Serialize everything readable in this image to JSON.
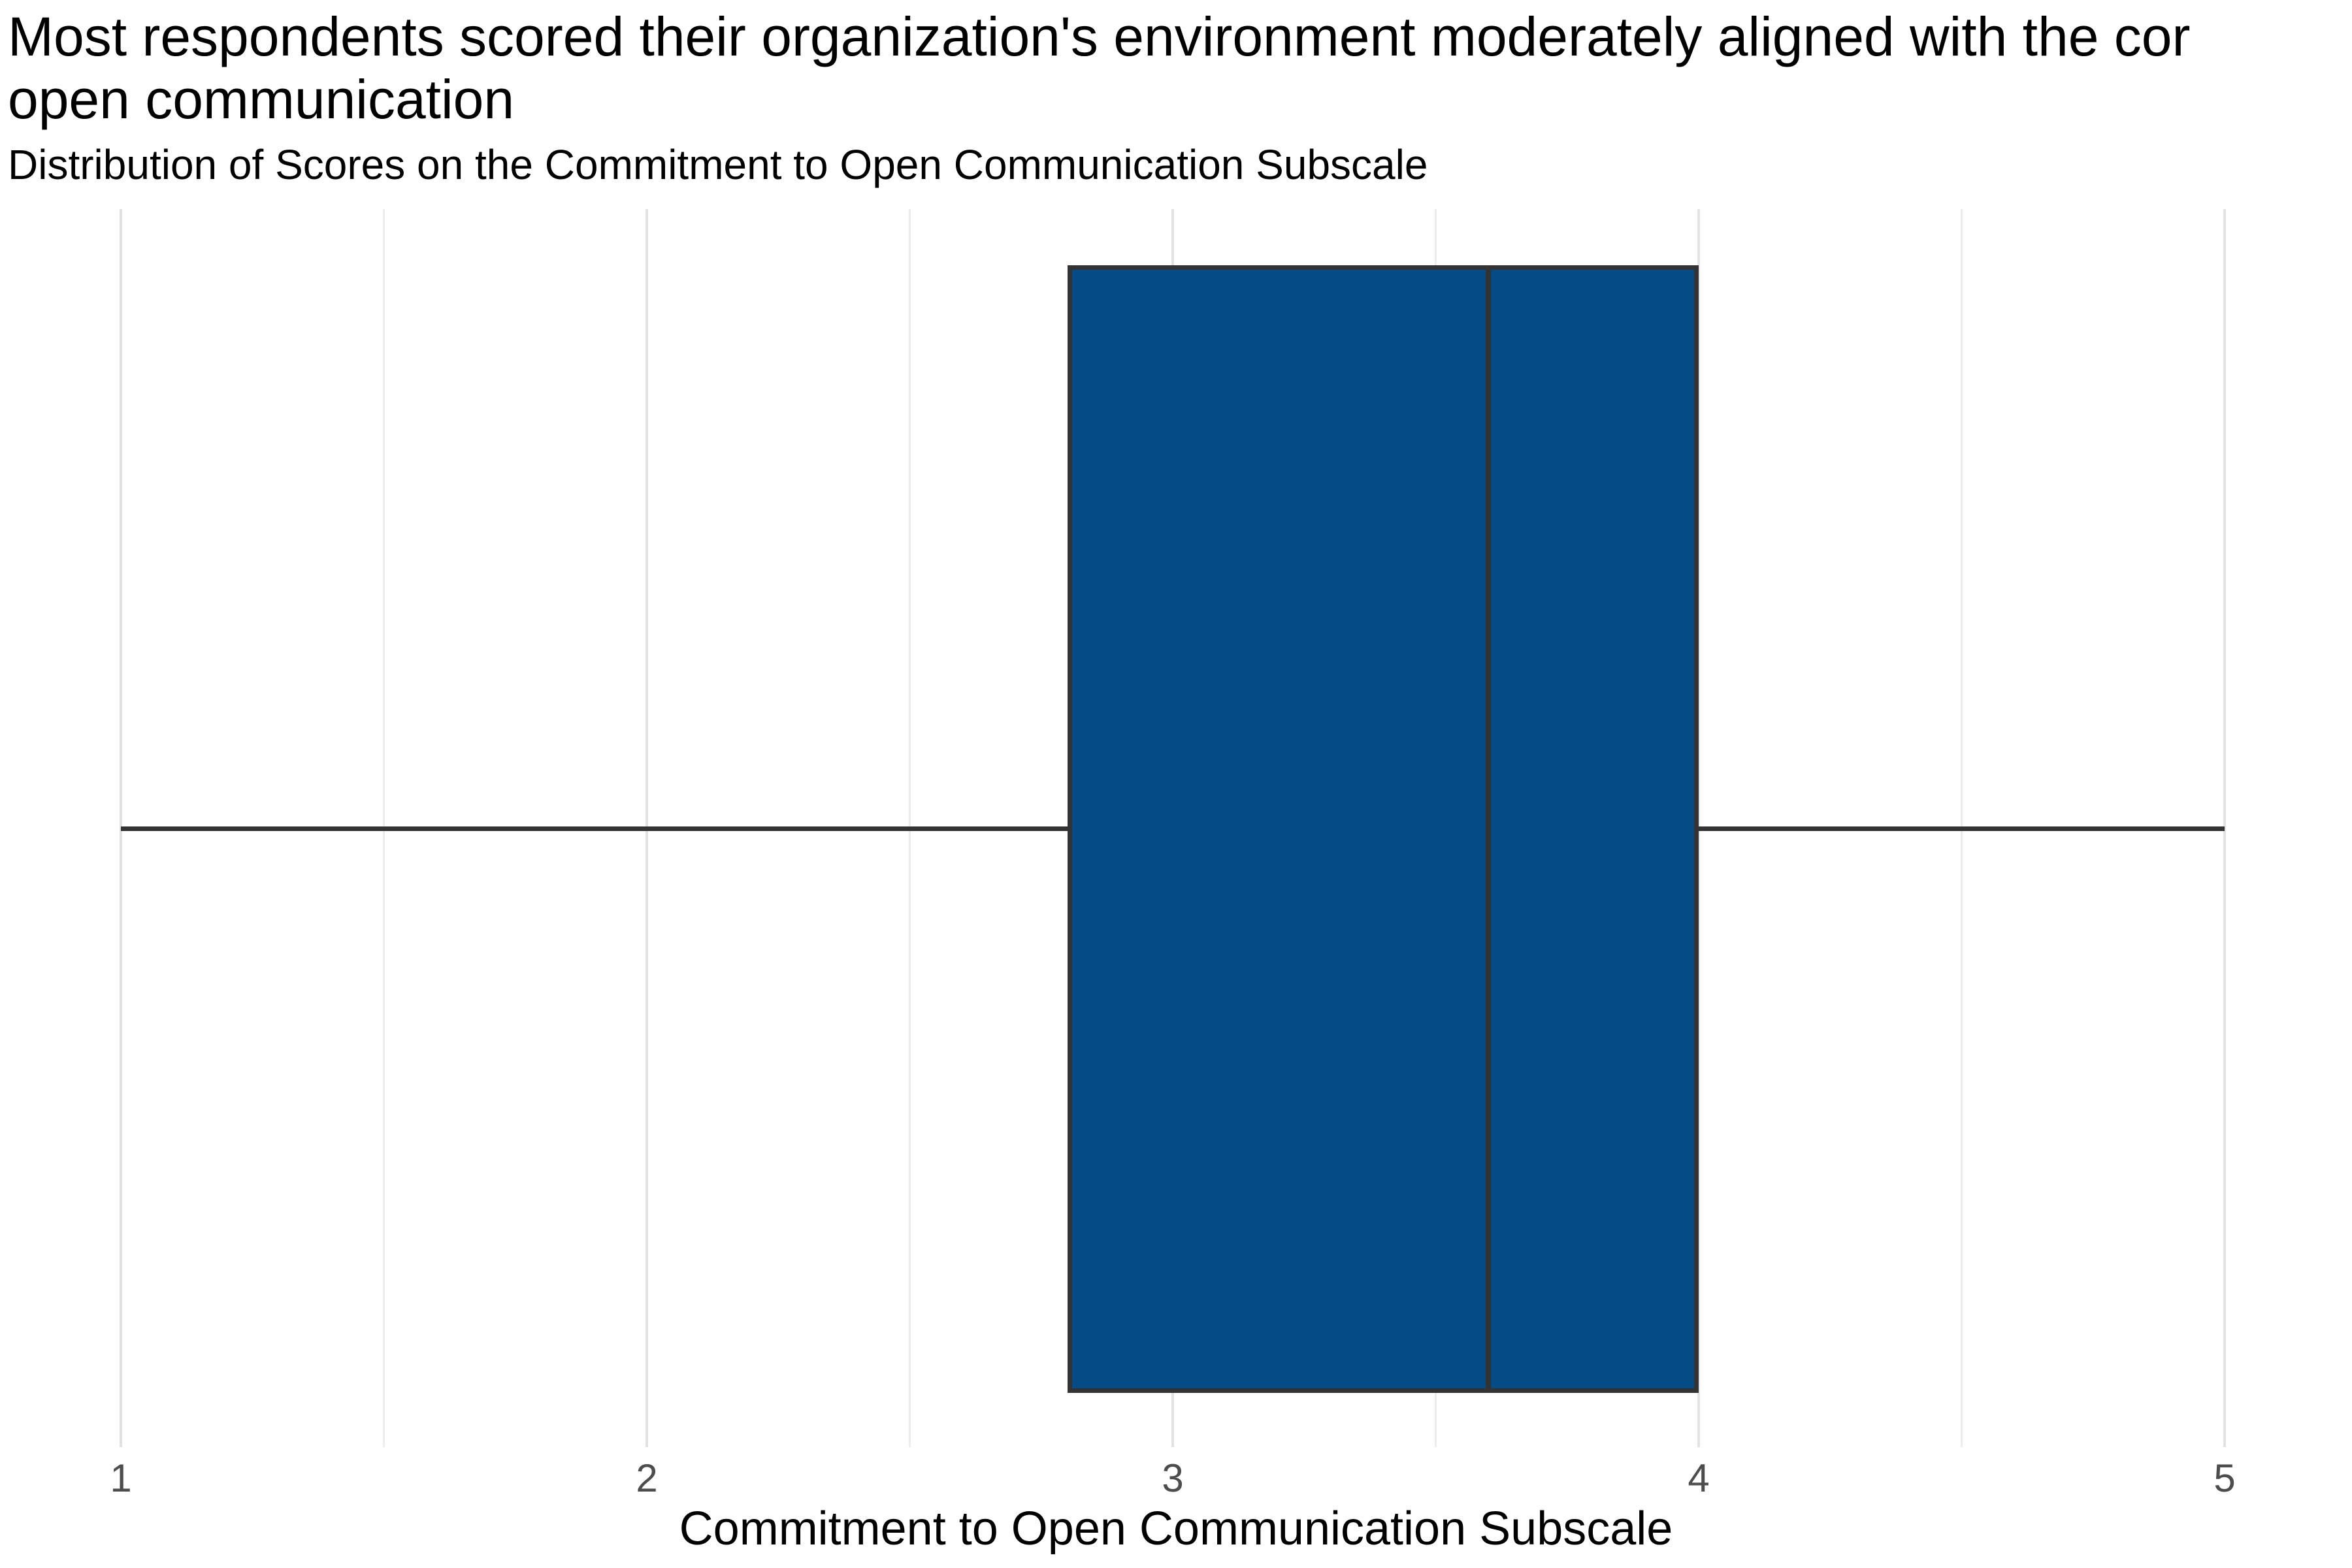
{
  "title": {
    "line1": "Most respondents scored their organization's environment moderately aligned with the cor",
    "line2": "open communication"
  },
  "subtitle": "Distribution of Scores on the Commitment to Open Communication Subscale",
  "chart_data": {
    "type": "boxplot",
    "orientation": "horizontal",
    "title": "Most respondents scored their organization's environment moderately aligned with the cor open communication",
    "subtitle": "Distribution of Scores on the Commitment to Open Communication Subscale",
    "xlabel": "Commitment to Open Communication Subscale",
    "ylabel": "",
    "xlim": [
      1,
      5
    ],
    "x_ticks": [
      "1",
      "2",
      "3",
      "4",
      "5"
    ],
    "x_tick_values": [
      1,
      2,
      3,
      4,
      5
    ],
    "x_minor_tick_values": [
      1.5,
      2.5,
      3.5,
      4.5
    ],
    "grid": "vertical major and minor gridlines, no axis lines, white background",
    "legend": "none",
    "series": [
      {
        "name": "Commitment to Open Communication Subscale",
        "whisker_low": 1.0,
        "q1": 2.8,
        "median": 3.6,
        "q3": 4.0,
        "whisker_high": 5.0
      }
    ],
    "colors": {
      "box_fill": "#054c86",
      "box_border": "#333333",
      "median_line": "#333333",
      "whisker_line": "#333333",
      "gridline_major": "#e2e2e2",
      "gridline_minor": "#ededed",
      "tick_label": "#4d4d4d",
      "text": "#000000",
      "background": "#ffffff"
    }
  }
}
